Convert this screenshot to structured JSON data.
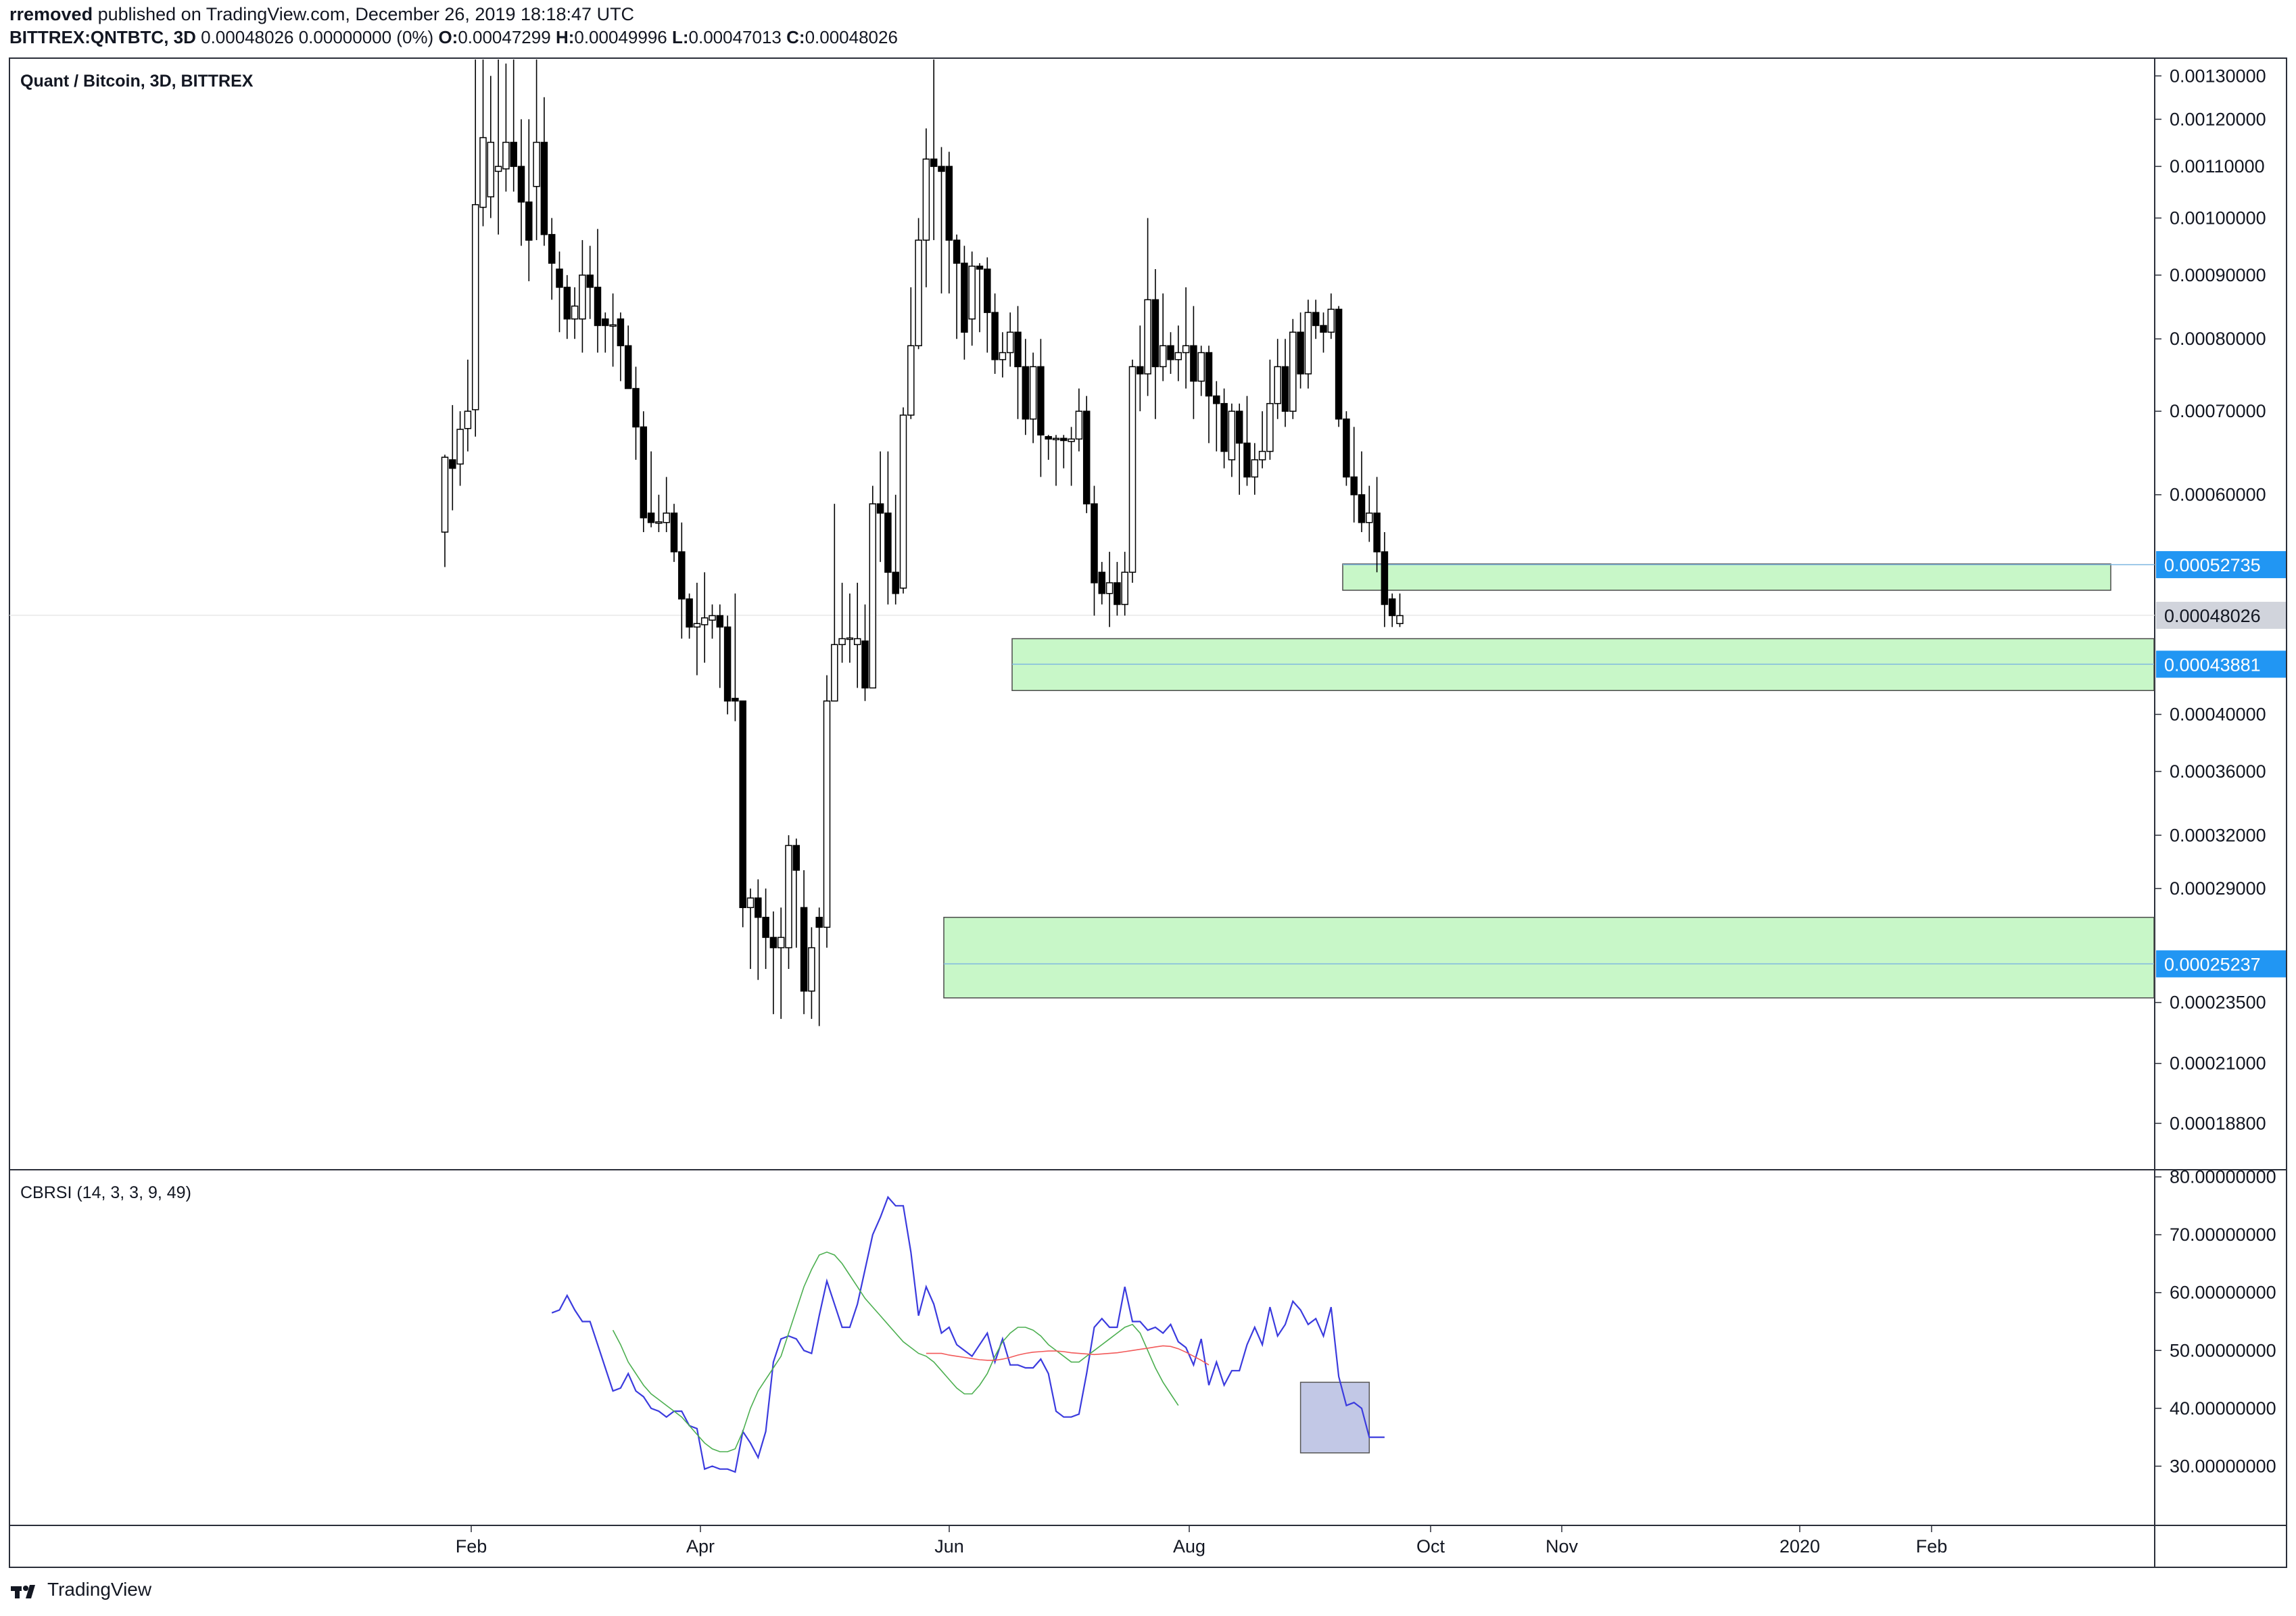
{
  "header": {
    "author": "rremoved",
    "published_text": "published on TradingView.com, December 26, 2019 18:18:47 UTC",
    "symbol": "BITTREX:QNTBTC, 3D",
    "ohlc_summary": "0.00048026 0.00000000 (0%)",
    "open_label": "O:",
    "open": "0.00047299",
    "high_label": "H:",
    "high": "0.00049996",
    "low_label": "L:",
    "low": "0.00047013",
    "close_label": "C:",
    "close": "0.00048026"
  },
  "footer": {
    "brand": "TradingView",
    "logo_icon": "tradingview-logo-icon"
  },
  "chart_data": [
    {
      "type": "candlestick",
      "title": "Quant / Bitcoin, 3D, BITTREX",
      "y_scale": "log",
      "ylim": [
        0.000173,
        0.00134
      ],
      "y_ticks": [
        0.0013,
        0.0012,
        0.0011,
        0.001,
        0.0009,
        0.0008,
        0.0007,
        0.0006,
        0.0004,
        0.00036,
        0.00032,
        0.00029,
        0.000235,
        0.00021,
        0.000188
      ],
      "y_tick_labels": [
        "0.00130000",
        "0.00120000",
        "0.00110000",
        "0.00100000",
        "0.00090000",
        "0.00080000",
        "0.00070000",
        "0.00060000",
        "0.00040000",
        "0.00036000",
        "0.00032000",
        "0.00029000",
        "0.00023500",
        "0.00021000",
        "0.00018800"
      ],
      "x_tick_labels": [
        "Feb",
        "Apr",
        "Jun",
        "Aug",
        "Oct",
        "Nov",
        "2020",
        "Feb"
      ],
      "price_tags": [
        {
          "label": "0.00052735",
          "value": 0.00052735,
          "color": "#2196f3"
        },
        {
          "label": "0.00048026",
          "value": 0.00048026,
          "color": "#d1d4dc"
        },
        {
          "label": "0.00043881",
          "value": 0.00043881,
          "color": "#2196f3"
        },
        {
          "label": "0.00025237",
          "value": 0.00025237,
          "color": "#2196f3"
        }
      ],
      "zones": [
        {
          "name": "resistance-zone",
          "top": 0.000528,
          "bottom": 0.000503,
          "mid": 0.00052735
        },
        {
          "name": "support-zone-1",
          "top": 0.00046,
          "bottom": 0.000418,
          "mid": 0.00043881
        },
        {
          "name": "support-zone-2",
          "top": 0.000275,
          "bottom": 0.000237,
          "mid": 0.00025237
        }
      ],
      "candles": [
        [
          0.00056,
          0.000643,
          0.000525,
          0.000646
        ],
        [
          0.00064,
          0.00063,
          0.000583,
          0.000708
        ],
        [
          0.000635,
          0.000677,
          0.00061,
          0.0007
        ],
        [
          0.000678,
          0.0007,
          0.00065,
          0.00077
        ],
        [
          0.000702,
          0.001025,
          0.000668,
          0.00155
        ],
        [
          0.00102,
          0.00116,
          0.000985,
          0.00146
        ],
        [
          0.00104,
          0.00115,
          0.001,
          0.0013
        ],
        [
          0.00109,
          0.0011,
          0.00097,
          0.00135
        ],
        [
          0.001095,
          0.00115,
          0.00105,
          0.00133
        ],
        [
          0.00115,
          0.0011,
          0.00105,
          0.00145
        ],
        [
          0.0011,
          0.00103,
          0.00095,
          0.0012
        ],
        [
          0.00103,
          0.00096,
          0.00089,
          0.0012
        ],
        [
          0.00106,
          0.00115,
          0.00096,
          0.00137
        ],
        [
          0.00115,
          0.00097,
          0.00095,
          0.00125
        ],
        [
          0.00097,
          0.00092,
          0.00086,
          0.001
        ],
        [
          0.00091,
          0.00088,
          0.00081,
          0.00094
        ],
        [
          0.00088,
          0.00083,
          0.0008,
          0.0009
        ],
        [
          0.00083,
          0.00085,
          0.0008,
          0.00088
        ],
        [
          0.00083,
          0.0009,
          0.00078,
          0.00096
        ],
        [
          0.0009,
          0.00088,
          0.00083,
          0.00095
        ],
        [
          0.00088,
          0.00082,
          0.00078,
          0.00098
        ],
        [
          0.00083,
          0.00082,
          0.00078,
          0.00084
        ],
        [
          0.00082,
          0.00082,
          0.00076,
          0.00087
        ],
        [
          0.00083,
          0.00079,
          0.00074,
          0.00084
        ],
        [
          0.00079,
          0.00073,
          0.00073,
          0.00082
        ],
        [
          0.00073,
          0.00068,
          0.00064,
          0.00076
        ],
        [
          0.00068,
          0.000575,
          0.00056,
          0.0007
        ],
        [
          0.00058,
          0.00057,
          0.000565,
          0.00065
        ],
        [
          0.00057,
          0.00057,
          0.00056,
          0.0006
        ],
        [
          0.00057,
          0.00058,
          0.00056,
          0.00062
        ],
        [
          0.00058,
          0.00054,
          0.00053,
          0.00059
        ],
        [
          0.00054,
          0.000495,
          0.00046,
          0.00057
        ],
        [
          0.000495,
          0.00047,
          0.00046,
          0.0005
        ],
        [
          0.00047,
          0.000473,
          0.00043,
          0.00051
        ],
        [
          0.000472,
          0.000478,
          0.00044,
          0.00052
        ],
        [
          0.000476,
          0.00048,
          0.00046,
          0.00049
        ],
        [
          0.00048,
          0.00047,
          0.00042,
          0.00049
        ],
        [
          0.00047,
          0.00041,
          0.0004,
          0.00048
        ],
        [
          0.000412,
          0.00041,
          0.000395,
          0.0005
        ],
        [
          0.00041,
          0.00028,
          0.00027,
          0.00041
        ],
        [
          0.00028,
          0.000285,
          0.00025,
          0.00029
        ],
        [
          0.000285,
          0.000275,
          0.000245,
          0.000295
        ],
        [
          0.000275,
          0.000265,
          0.00025,
          0.00029
        ],
        [
          0.000265,
          0.00026,
          0.00023,
          0.000278
        ],
        [
          0.00026,
          0.000265,
          0.000228,
          0.00028
        ],
        [
          0.00026,
          0.000314,
          0.00025,
          0.00032
        ],
        [
          0.000314,
          0.0003,
          0.00026,
          0.000318
        ],
        [
          0.00028,
          0.00024,
          0.00023,
          0.0003
        ],
        [
          0.00024,
          0.00026,
          0.000228,
          0.00027
        ],
        [
          0.000275,
          0.00027,
          0.000225,
          0.00028
        ],
        [
          0.00027,
          0.00041,
          0.00026,
          0.00043
        ],
        [
          0.00041,
          0.000455,
          0.00041,
          0.00059
        ],
        [
          0.000455,
          0.00046,
          0.00044,
          0.00051
        ],
        [
          0.00046,
          0.00046,
          0.00044,
          0.0005
        ],
        [
          0.000455,
          0.00046,
          0.00042,
          0.00051
        ],
        [
          0.000458,
          0.00042,
          0.00041,
          0.00049
        ],
        [
          0.00042,
          0.00059,
          0.00042,
          0.00061
        ],
        [
          0.00059,
          0.00058,
          0.00053,
          0.00065
        ],
        [
          0.00058,
          0.00052,
          0.00049,
          0.00065
        ],
        [
          0.00052,
          0.0005,
          0.00049,
          0.0006
        ],
        [
          0.000505,
          0.000695,
          0.0005,
          0.000705
        ],
        [
          0.000695,
          0.00079,
          0.00069,
          0.00088
        ],
        [
          0.00079,
          0.00096,
          0.000785,
          0.001
        ],
        [
          0.00096,
          0.001115,
          0.00088,
          0.00118
        ],
        [
          0.001115,
          0.0011,
          0.00096,
          0.00134
        ],
        [
          0.0011,
          0.00109,
          0.00087,
          0.00114
        ],
        [
          0.0011,
          0.00096,
          0.00087,
          0.00113
        ],
        [
          0.00096,
          0.00092,
          0.0008,
          0.00097
        ],
        [
          0.00092,
          0.00081,
          0.00077,
          0.00095
        ],
        [
          0.00083,
          0.000915,
          0.00079,
          0.00094
        ],
        [
          0.000915,
          0.00091,
          0.00081,
          0.00092
        ],
        [
          0.00091,
          0.00084,
          0.00078,
          0.00093
        ],
        [
          0.00084,
          0.00077,
          0.00075,
          0.00087
        ],
        [
          0.00077,
          0.00078,
          0.000745,
          0.00081
        ],
        [
          0.00078,
          0.00081,
          0.00076,
          0.00084
        ],
        [
          0.00081,
          0.00076,
          0.00069,
          0.00085
        ],
        [
          0.00076,
          0.00069,
          0.00067,
          0.0008
        ],
        [
          0.00069,
          0.00076,
          0.00066,
          0.00078
        ],
        [
          0.00076,
          0.00067,
          0.00062,
          0.0008
        ],
        [
          0.000668,
          0.000665,
          0.00064,
          0.00067
        ],
        [
          0.000665,
          0.000665,
          0.00061,
          0.00067
        ],
        [
          0.000665,
          0.000664,
          0.00063,
          0.00067
        ],
        [
          0.000662,
          0.000665,
          0.00061,
          0.00068
        ],
        [
          0.000665,
          0.0007,
          0.00065,
          0.00073
        ],
        [
          0.0007,
          0.00059,
          0.00058,
          0.00072
        ],
        [
          0.00059,
          0.00051,
          0.00048,
          0.00061
        ],
        [
          0.00052,
          0.0005,
          0.00049,
          0.00053
        ],
        [
          0.0005,
          0.00051,
          0.00047,
          0.00054
        ],
        [
          0.00051,
          0.00049,
          0.00048,
          0.00053
        ],
        [
          0.00049,
          0.00052,
          0.00048,
          0.00054
        ],
        [
          0.00052,
          0.00076,
          0.00051,
          0.00077
        ],
        [
          0.00076,
          0.00075,
          0.0007,
          0.00082
        ],
        [
          0.00075,
          0.00086,
          0.00072,
          0.001
        ],
        [
          0.00086,
          0.00076,
          0.00069,
          0.00091
        ],
        [
          0.00076,
          0.00079,
          0.00074,
          0.00087
        ],
        [
          0.00079,
          0.00077,
          0.00075,
          0.00081
        ],
        [
          0.00077,
          0.00078,
          0.00074,
          0.00082
        ],
        [
          0.00078,
          0.00079,
          0.00073,
          0.00088
        ],
        [
          0.00079,
          0.00074,
          0.00069,
          0.00085
        ],
        [
          0.00074,
          0.00078,
          0.00072,
          0.00079
        ],
        [
          0.00078,
          0.00072,
          0.00066,
          0.00079
        ],
        [
          0.00072,
          0.00071,
          0.00065,
          0.00074
        ],
        [
          0.00071,
          0.00065,
          0.00063,
          0.00073
        ],
        [
          0.00064,
          0.0007,
          0.00062,
          0.00071
        ],
        [
          0.0007,
          0.00066,
          0.0006,
          0.00071
        ],
        [
          0.00066,
          0.00062,
          0.00061,
          0.00072
        ],
        [
          0.00062,
          0.00064,
          0.0006,
          0.00066
        ],
        [
          0.00064,
          0.00065,
          0.00063,
          0.0007
        ],
        [
          0.00065,
          0.00071,
          0.00064,
          0.00077
        ],
        [
          0.00071,
          0.00076,
          0.00069,
          0.0008
        ],
        [
          0.00076,
          0.0007,
          0.00068,
          0.0008
        ],
        [
          0.0007,
          0.00081,
          0.00069,
          0.00083
        ],
        [
          0.00081,
          0.00075,
          0.00073,
          0.00084
        ],
        [
          0.00075,
          0.00084,
          0.00073,
          0.00086
        ],
        [
          0.00084,
          0.00082,
          0.0008,
          0.00086
        ],
        [
          0.00082,
          0.00081,
          0.00078,
          0.00084
        ],
        [
          0.00081,
          0.000845,
          0.0008,
          0.00087
        ],
        [
          0.000845,
          0.00069,
          0.00068,
          0.00085
        ],
        [
          0.00069,
          0.00062,
          0.00061,
          0.0007
        ],
        [
          0.00062,
          0.0006,
          0.00057,
          0.00068
        ],
        [
          0.0006,
          0.00057,
          0.00056,
          0.00065
        ],
        [
          0.00057,
          0.00058,
          0.00055,
          0.00061
        ],
        [
          0.00058,
          0.00054,
          0.00052,
          0.00062
        ],
        [
          0.00054,
          0.00049,
          0.00047,
          0.00056
        ],
        [
          0.000495,
          0.00048,
          0.00047,
          0.0005
        ],
        [
          0.000473,
          0.00048,
          0.00047,
          0.0005
        ]
      ]
    },
    {
      "type": "line",
      "title": "CBRSI (14, 3, 3, 9, 49)",
      "ylim": [
        20,
        81
      ],
      "y_ticks": [
        80,
        70,
        60,
        50,
        40,
        30
      ],
      "y_tick_labels": [
        "80.00000000",
        "70.00000000",
        "60.00000000",
        "50.00000000",
        "40.00000000",
        "30.00000000"
      ],
      "series": [
        {
          "color": "#3b3bde",
          "start_index": 14,
          "values": [
            56.5,
            57,
            59.5,
            57,
            55,
            55,
            51,
            47,
            43,
            43.5,
            46,
            43,
            42,
            40,
            39.5,
            38.5,
            39.5,
            39.5,
            37,
            36.5,
            29.5,
            30,
            29.5,
            29.5,
            29,
            36,
            34,
            31.5,
            36,
            48,
            52,
            52.5,
            52,
            50,
            49.5,
            56,
            62,
            58,
            54,
            54,
            58,
            64,
            70,
            73,
            76.5,
            75,
            75,
            67,
            56,
            61,
            58,
            53,
            54,
            51,
            50,
            49,
            51,
            53,
            48,
            52,
            47.5,
            47.5,
            47,
            47,
            48.5,
            46,
            39.5,
            38.5,
            38.5,
            39,
            46,
            54,
            55.5,
            54,
            54,
            61,
            55,
            55,
            53.5,
            54,
            53,
            54.5,
            51.5,
            50.5,
            47.5,
            52,
            44,
            48,
            44,
            46.5,
            46.5,
            51,
            54,
            51,
            57.5,
            52.5,
            54.5,
            58.5,
            57,
            54.5,
            55.5,
            52.5,
            57.5,
            45.5,
            40.5,
            41,
            40,
            35,
            35,
            35
          ]
        },
        {
          "color": "#4caf50",
          "start_index": 22,
          "values": [
            53.5,
            51,
            48,
            46,
            44,
            42.5,
            41.5,
            40.5,
            39.5,
            38.5,
            37,
            35.5,
            34,
            33,
            32.5,
            32.5,
            33,
            36,
            40,
            43,
            45,
            47,
            49,
            53,
            57,
            61,
            64,
            66.5,
            67,
            66.5,
            65,
            63,
            61,
            59,
            57.5,
            56,
            54.5,
            53,
            51.5,
            50.5,
            49.5,
            49,
            48,
            46.5,
            45,
            43.5,
            42.5,
            42.5,
            44,
            46,
            49,
            51.5,
            53,
            54,
            54,
            53.5,
            52.5,
            51,
            50,
            49,
            48,
            48,
            49,
            50,
            51,
            52,
            53,
            54,
            54.5,
            53,
            50,
            47,
            44.5,
            42.5,
            40.5
          ]
        },
        {
          "color": "#f25a5a",
          "start_index": 63,
          "values": [
            49.5,
            49.5,
            49.5,
            49.2,
            49,
            48.8,
            48.6,
            48.4,
            48.3,
            48.3,
            48.5,
            48.8,
            49.2,
            49.5,
            49.7,
            49.8,
            49.9,
            49.9,
            49.8,
            49.6,
            49.5,
            49.4,
            49.3,
            49.4,
            49.5,
            49.6,
            49.8,
            50,
            50.2,
            50.4,
            50.6,
            50.8,
            50.7,
            50.3,
            49.7,
            49,
            48.3,
            47.5
          ]
        }
      ],
      "highlight": {
        "x_start_index": 112,
        "x_end_index": 121,
        "y_top": 44.5,
        "y_bottom": 32.3
      }
    }
  ]
}
